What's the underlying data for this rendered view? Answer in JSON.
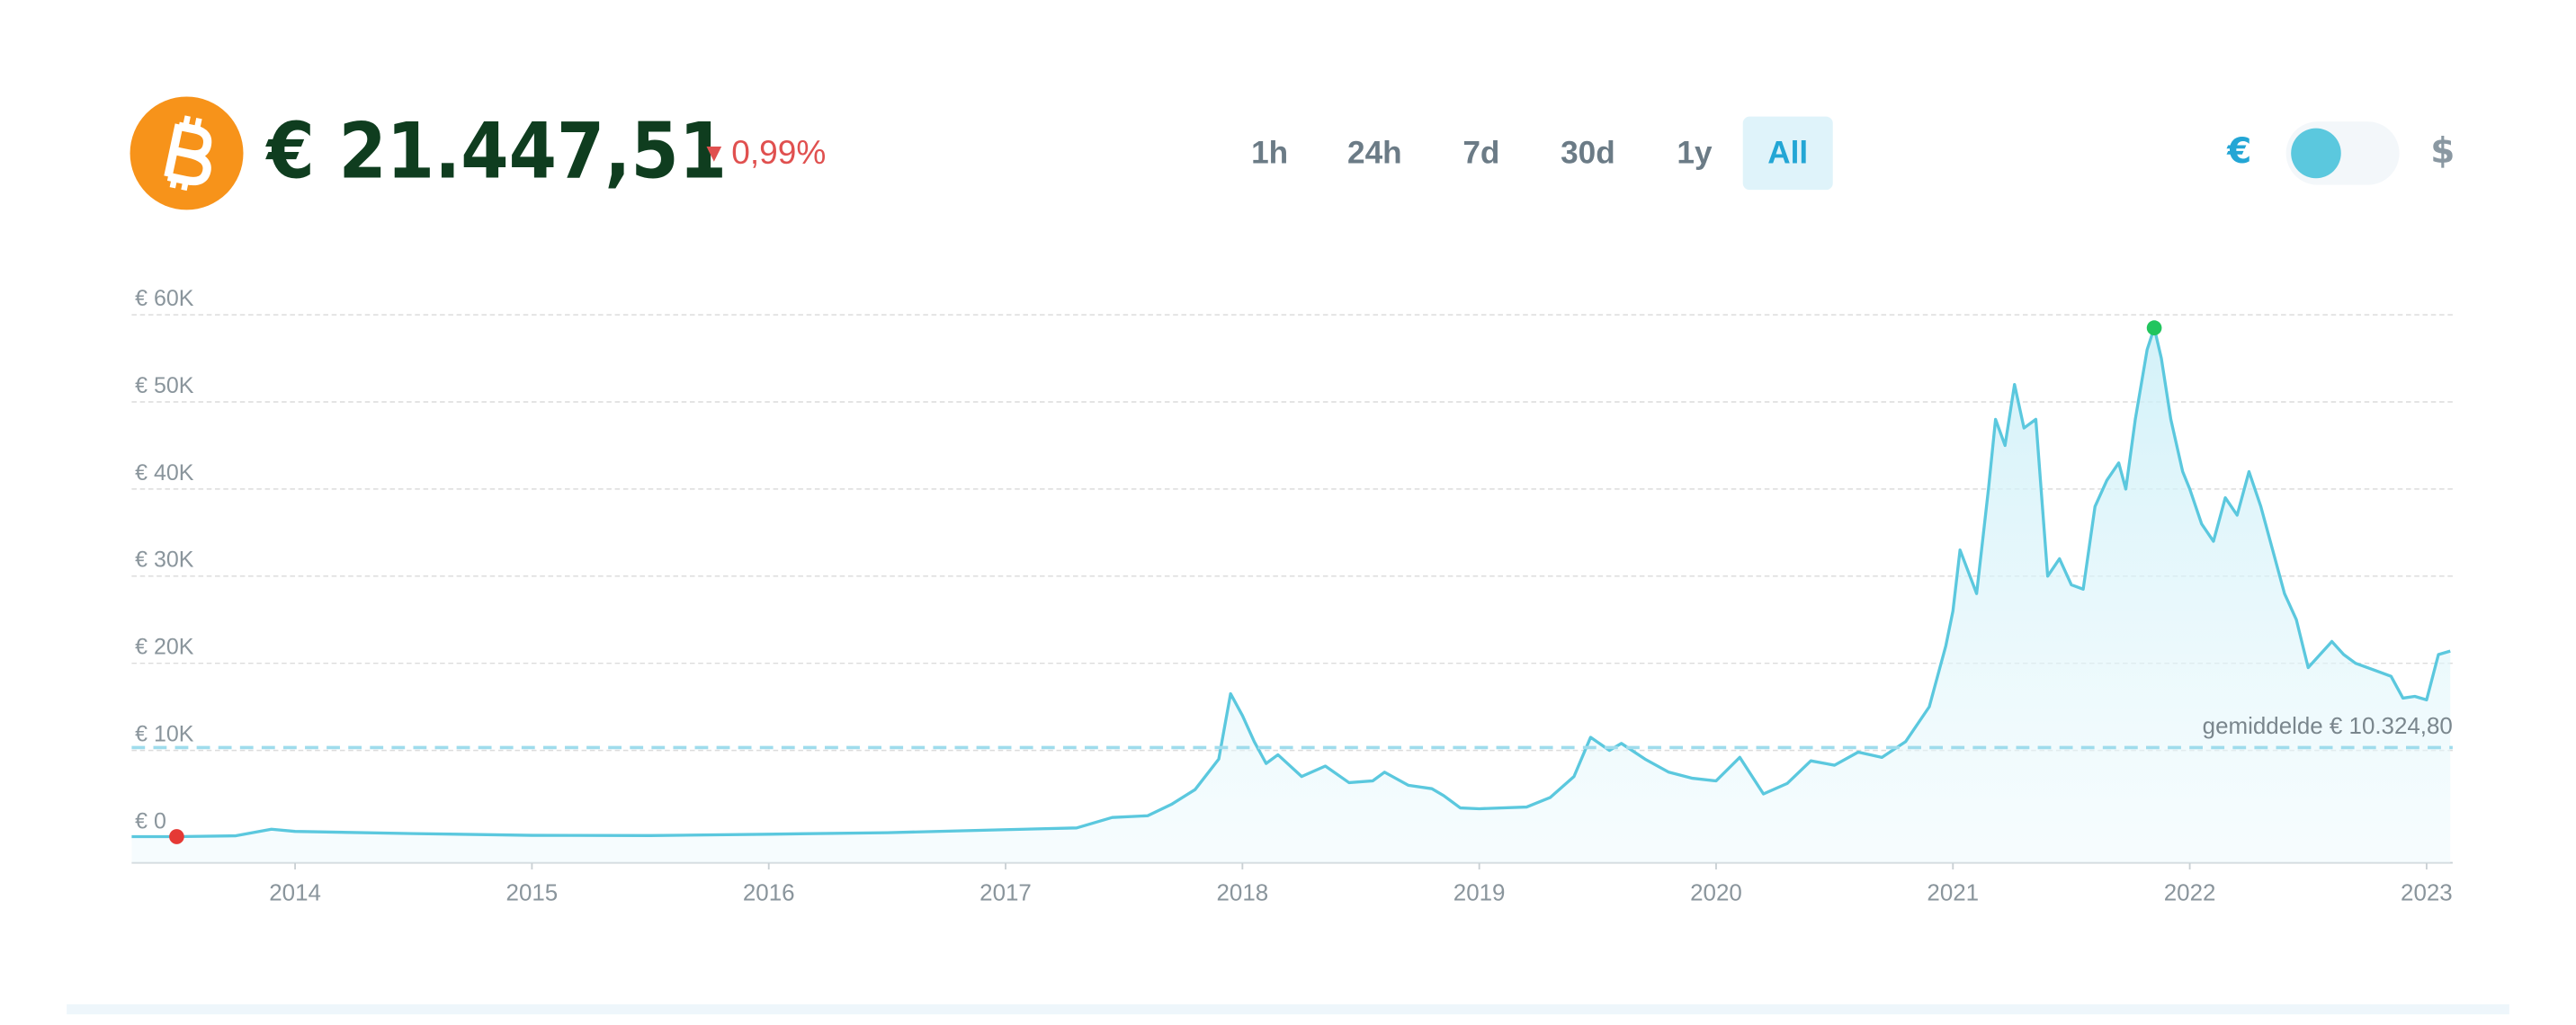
{
  "header": {
    "price": "€ 21.447,51",
    "change": "0,99%",
    "ranges": [
      "1h",
      "24h",
      "7d",
      "30d",
      "1y",
      "All"
    ],
    "active_range": "All",
    "currency_left": "€",
    "currency_right": "$"
  },
  "chart_data": {
    "type": "line",
    "series": [
      {
        "name": "Bitcoin",
        "color": "#5bc8de",
        "x": [
          2013.31,
          2013.5,
          2013.75,
          2013.9,
          2014.0,
          2014.5,
          2015.0,
          2015.5,
          2016.0,
          2016.5,
          2017.0,
          2017.3,
          2017.45,
          2017.6,
          2017.7,
          2017.8,
          2017.9,
          2017.95,
          2018.0,
          2018.05,
          2018.1,
          2018.15,
          2018.25,
          2018.35,
          2018.45,
          2018.55,
          2018.6,
          2018.7,
          2018.8,
          2018.85,
          2018.92,
          2019.0,
          2019.2,
          2019.3,
          2019.4,
          2019.47,
          2019.55,
          2019.6,
          2019.7,
          2019.8,
          2019.9,
          2020.0,
          2020.1,
          2020.2,
          2020.3,
          2020.4,
          2020.5,
          2020.6,
          2020.7,
          2020.8,
          2020.9,
          2020.97,
          2021.0,
          2021.03,
          2021.1,
          2021.15,
          2021.18,
          2021.22,
          2021.26,
          2021.3,
          2021.35,
          2021.4,
          2021.45,
          2021.5,
          2021.55,
          2021.6,
          2021.65,
          2021.7,
          2021.73,
          2021.77,
          2021.82,
          2021.85,
          2021.88,
          2021.92,
          2021.97,
          2022.0,
          2022.05,
          2022.1,
          2022.15,
          2022.2,
          2022.25,
          2022.3,
          2022.35,
          2022.4,
          2022.45,
          2022.5,
          2022.55,
          2022.6,
          2022.65,
          2022.7,
          2022.8,
          2022.85,
          2022.9,
          2022.95,
          2023.0,
          2023.05,
          2023.1
        ],
        "values": [
          100,
          100,
          200,
          950,
          700,
          450,
          250,
          220,
          380,
          550,
          900,
          1100,
          2300,
          2500,
          3800,
          5500,
          9000,
          16500,
          14000,
          11000,
          8500,
          9500,
          7000,
          8200,
          6300,
          6500,
          7500,
          6000,
          5600,
          4800,
          3400,
          3300,
          3500,
          4600,
          7000,
          11500,
          10000,
          10800,
          9000,
          7500,
          6800,
          6500,
          9200,
          5000,
          6200,
          8800,
          8300,
          9800,
          9200,
          11000,
          15000,
          22000,
          26000,
          33000,
          28000,
          40000,
          48000,
          45000,
          52000,
          47000,
          48000,
          30000,
          32000,
          29000,
          28500,
          38000,
          41000,
          43000,
          40000,
          48000,
          56000,
          58500,
          55000,
          48000,
          42000,
          40000,
          36000,
          34000,
          39000,
          37000,
          42000,
          38000,
          33000,
          28000,
          25000,
          19500,
          21000,
          22500,
          21000,
          20000,
          19000,
          18500,
          16000,
          16200,
          15800,
          21000,
          21400
        ]
      }
    ],
    "markers": [
      {
        "x": 2013.5,
        "y": 100,
        "color": "#e53935"
      },
      {
        "x": 2021.85,
        "y": 58500,
        "color": "#22c55e"
      }
    ],
    "average": {
      "value": 10324.8,
      "label": "gemiddelde € 10.324,80"
    },
    "xlim": [
      2013.31,
      2023.11
    ],
    "xticks": [
      2014,
      2015,
      2016,
      2017,
      2018,
      2019,
      2020,
      2021,
      2022,
      2023
    ],
    "ylim": [
      -2900,
      60000
    ],
    "yticks": [
      {
        "value": 0,
        "label": "€ 0"
      },
      {
        "value": 10000,
        "label": "€ 10K"
      },
      {
        "value": 20000,
        "label": "€ 20K"
      },
      {
        "value": 30000,
        "label": "€ 30K"
      },
      {
        "value": 40000,
        "label": "€ 40K"
      },
      {
        "value": 50000,
        "label": "€ 50K"
      },
      {
        "value": 60000,
        "label": "€ 60K"
      }
    ],
    "grid": true
  }
}
